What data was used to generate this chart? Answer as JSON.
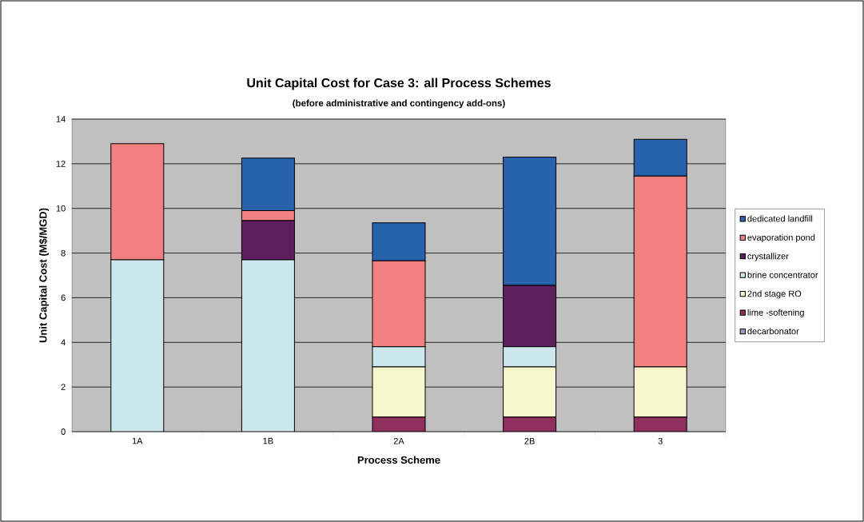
{
  "chart_data": {
    "type": "bar",
    "stacked": true,
    "title": "Unit Capital Cost for Case 3: all Process Schemes",
    "subtitle": "(before administrative and contingency add-ons)",
    "xlabel": "Process Scheme",
    "ylabel": "Unit Capital Cost (M$/MGD)",
    "categories": [
      "1A",
      "1B",
      "2A",
      "2B",
      "3"
    ],
    "series": [
      {
        "name": "decarbonator",
        "color": "#9999cc",
        "values": [
          0,
          0,
          0,
          0,
          0
        ]
      },
      {
        "name": "lime -softening",
        "color": "#8e2f5e",
        "values": [
          0,
          0,
          0.65,
          0.65,
          0.65
        ]
      },
      {
        "name": "2nd stage RO",
        "color": "#f8f6cc",
        "values": [
          0,
          0,
          2.25,
          2.25,
          2.25
        ]
      },
      {
        "name": "brine concentrator",
        "color": "#cce8ee",
        "values": [
          7.7,
          7.7,
          0.9,
          0.9,
          0
        ]
      },
      {
        "name": "crystallizer",
        "color": "#5e1f5e",
        "values": [
          0,
          1.75,
          0,
          2.75,
          0
        ]
      },
      {
        "name": "evaporation pond",
        "color": "#f28080",
        "values": [
          5.2,
          0.45,
          3.85,
          0,
          8.55
        ]
      },
      {
        "name": "dedicated landfill",
        "color": "#2862ac",
        "values": [
          0,
          2.35,
          1.7,
          5.75,
          1.65
        ]
      }
    ],
    "ylim": [
      0,
      14
    ],
    "yticks": [
      0,
      2,
      4,
      6,
      8,
      10,
      12,
      14
    ],
    "grid": "y",
    "legend": "right"
  }
}
